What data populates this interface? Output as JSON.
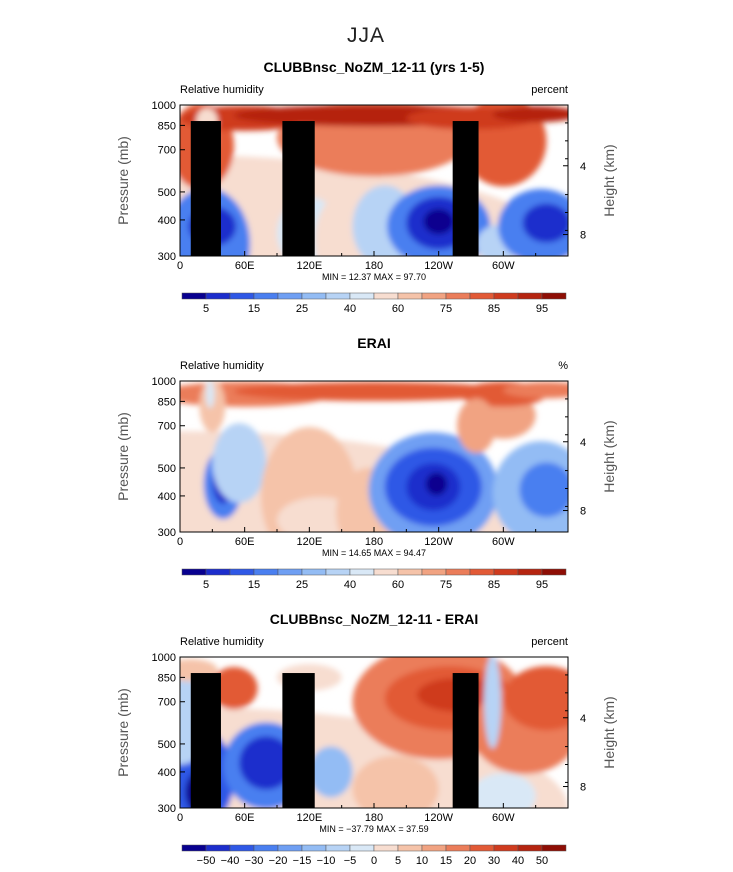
{
  "figure_title": "JJA",
  "chart_data": [
    {
      "type": "heatmap",
      "title": "CLUBBnsc_NoZM_12-11 (yrs 1-5)",
      "left_label": "Relative humidity",
      "right_label": "percent",
      "ylabel": "Pressure (mb)",
      "y2label": "Height (km)",
      "ylim": [
        1000,
        300
      ],
      "y_ticks": [
        "300",
        "400",
        "500",
        "700",
        "850",
        "1000"
      ],
      "y2_ticks": [
        "8",
        "4"
      ],
      "x_ticks": [
        "0",
        "60E",
        "120E",
        "180",
        "120W",
        "60W"
      ],
      "stats": "MIN =  12.37   MAX =  97.70",
      "colorbar_labels": [
        "5",
        "15",
        "25",
        "40",
        "60",
        "75",
        "85",
        "95"
      ],
      "colorbar_levels": [
        "0",
        "5",
        "10",
        "15",
        "20",
        "25",
        "30",
        "40",
        "50",
        "60",
        "70",
        "75",
        "80",
        "85",
        "90",
        "95",
        "100"
      ],
      "colors": [
        "#08008f",
        "#1c2dcc",
        "#2f58e6",
        "#4a7ff0",
        "#6f9ff3",
        "#93bcf4",
        "#b7d3f5",
        "#d9e8f6",
        "#f7ddd0",
        "#f5c3a9",
        "#f1a382",
        "#eb7d5a",
        "#e25a36",
        "#cf3b1e",
        "#b52410",
        "#8e0e05"
      ]
    },
    {
      "type": "heatmap",
      "title": "ERAI",
      "left_label": "Relative humidity",
      "right_label": "%",
      "ylabel": "Pressure (mb)",
      "y2label": "Height (km)",
      "ylim": [
        1000,
        300
      ],
      "y_ticks": [
        "300",
        "400",
        "500",
        "700",
        "850",
        "1000"
      ],
      "y2_ticks": [
        "8",
        "4"
      ],
      "x_ticks": [
        "0",
        "60E",
        "120E",
        "180",
        "120W",
        "60W"
      ],
      "stats": "MIN =  14.65   MAX =  94.47",
      "colorbar_labels": [
        "5",
        "15",
        "25",
        "40",
        "60",
        "75",
        "85",
        "95"
      ],
      "colorbar_levels": [
        "0",
        "5",
        "10",
        "15",
        "20",
        "25",
        "30",
        "40",
        "50",
        "60",
        "70",
        "75",
        "80",
        "85",
        "90",
        "95",
        "100"
      ],
      "colors": [
        "#08008f",
        "#1c2dcc",
        "#2f58e6",
        "#4a7ff0",
        "#6f9ff3",
        "#93bcf4",
        "#b7d3f5",
        "#d9e8f6",
        "#f7ddd0",
        "#f5c3a9",
        "#f1a382",
        "#eb7d5a",
        "#e25a36",
        "#cf3b1e",
        "#b52410",
        "#8e0e05"
      ]
    },
    {
      "type": "heatmap",
      "title": "CLUBBnsc_NoZM_12-11 - ERAI",
      "left_label": "Relative humidity",
      "right_label": "percent",
      "ylabel": "Pressure (mb)",
      "y2label": "Height (km)",
      "ylim": [
        1000,
        300
      ],
      "y_ticks": [
        "300",
        "400",
        "500",
        "700",
        "850",
        "1000"
      ],
      "y2_ticks": [
        "8",
        "4"
      ],
      "x_ticks": [
        "0",
        "60E",
        "120E",
        "180",
        "120W",
        "60W"
      ],
      "stats": "MIN = −37.79   MAX =  37.59",
      "colorbar_labels": [
        "−50",
        "−40",
        "−30",
        "−20",
        "−15",
        "−10",
        "−5",
        "0",
        "5",
        "10",
        "15",
        "20",
        "30",
        "40",
        "50"
      ],
      "colorbar_levels": [
        "−60",
        "−50",
        "−40",
        "−30",
        "−20",
        "−15",
        "−10",
        "−5",
        "0",
        "5",
        "10",
        "15",
        "20",
        "30",
        "40",
        "50",
        "60"
      ],
      "colors": [
        "#08008f",
        "#1c2dcc",
        "#2f58e6",
        "#4a7ff0",
        "#6f9ff3",
        "#93bcf4",
        "#b7d3f5",
        "#d9e8f6",
        "#f7ddd0",
        "#f5c3a9",
        "#f1a382",
        "#eb7d5a",
        "#e25a36",
        "#cf3b1e",
        "#b52410",
        "#8e0e05"
      ]
    }
  ]
}
